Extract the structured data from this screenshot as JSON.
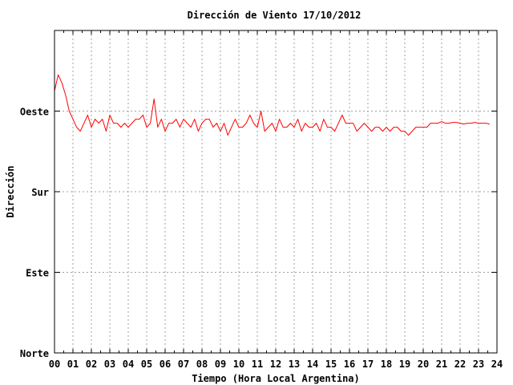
{
  "chart_data": {
    "type": "line",
    "title": "Dirección de Viento 17/10/2012",
    "xlabel": "Tiempo (Hora Local Argentina)",
    "ylabel": "Dirección",
    "xlim": [
      0,
      24
    ],
    "ylim": [
      0,
      4
    ],
    "x_ticks": [
      "00",
      "01",
      "02",
      "03",
      "04",
      "05",
      "06",
      "07",
      "08",
      "09",
      "10",
      "11",
      "12",
      "13",
      "14",
      "15",
      "16",
      "17",
      "18",
      "19",
      "20",
      "21",
      "22",
      "23",
      "24"
    ],
    "y_ticks": [
      {
        "value": 0,
        "label": "Norte"
      },
      {
        "value": 1,
        "label": "Este"
      },
      {
        "value": 2,
        "label": "Sur"
      },
      {
        "value": 3,
        "label": "Oeste"
      }
    ],
    "grid": true,
    "series_color": "#ff0000",
    "series": [
      {
        "x": [
          0.0,
          0.2,
          0.4,
          0.6,
          0.8,
          1.0,
          1.2,
          1.4,
          1.6,
          1.8,
          2.0,
          2.2,
          2.4,
          2.6,
          2.8,
          3.0,
          3.2,
          3.4,
          3.6,
          3.8,
          4.0,
          4.2,
          4.4,
          4.6,
          4.8,
          5.0,
          5.2,
          5.4,
          5.6,
          5.8,
          6.0,
          6.2,
          6.4,
          6.6,
          6.8,
          7.0,
          7.2,
          7.4,
          7.6,
          7.8,
          8.0,
          8.2,
          8.4,
          8.6,
          8.8,
          9.0,
          9.2,
          9.4,
          9.6,
          9.8,
          10.0,
          10.2,
          10.4,
          10.6,
          10.8,
          11.0,
          11.2,
          11.4,
          11.6,
          11.8,
          12.0,
          12.2,
          12.4,
          12.6,
          12.8,
          13.0,
          13.2,
          13.4,
          13.6,
          13.8,
          14.0,
          14.2,
          14.4,
          14.6,
          14.8,
          15.0,
          15.2,
          15.4,
          15.6,
          15.8,
          16.0,
          16.2,
          16.4,
          16.6,
          16.8,
          17.0,
          17.2,
          17.4,
          17.6,
          17.8,
          18.0,
          18.2,
          18.4,
          18.6,
          18.8,
          19.0,
          19.2,
          19.4,
          19.6,
          19.8,
          20.0,
          20.2,
          20.4,
          20.6,
          20.8,
          21.0,
          21.2,
          21.4,
          21.6,
          21.8,
          22.0,
          22.2,
          22.4,
          22.6,
          22.8,
          23.0,
          23.2,
          23.4,
          23.6
        ],
        "y": [
          3.25,
          3.45,
          3.35,
          3.2,
          3.0,
          2.9,
          2.8,
          2.75,
          2.85,
          2.95,
          2.8,
          2.9,
          2.85,
          2.9,
          2.75,
          2.95,
          2.85,
          2.85,
          2.8,
          2.85,
          2.8,
          2.85,
          2.9,
          2.9,
          2.95,
          2.8,
          2.85,
          3.15,
          2.8,
          2.9,
          2.75,
          2.85,
          2.85,
          2.9,
          2.8,
          2.9,
          2.85,
          2.8,
          2.9,
          2.75,
          2.85,
          2.9,
          2.9,
          2.8,
          2.85,
          2.75,
          2.85,
          2.7,
          2.8,
          2.9,
          2.8,
          2.8,
          2.85,
          2.95,
          2.85,
          2.8,
          3.0,
          2.75,
          2.8,
          2.85,
          2.75,
          2.9,
          2.8,
          2.8,
          2.85,
          2.8,
          2.9,
          2.75,
          2.85,
          2.8,
          2.8,
          2.85,
          2.75,
          2.9,
          2.8,
          2.8,
          2.75,
          2.85,
          2.95,
          2.85,
          2.85,
          2.85,
          2.75,
          2.8,
          2.85,
          2.8,
          2.75,
          2.8,
          2.8,
          2.75,
          2.8,
          2.75,
          2.8,
          2.8,
          2.75,
          2.75,
          2.7,
          2.75,
          2.8,
          2.8,
          2.8,
          2.8,
          2.85,
          2.85,
          2.85,
          2.87,
          2.85,
          2.85,
          2.86,
          2.86,
          2.85,
          2.84,
          2.85,
          2.85,
          2.86,
          2.85,
          2.85,
          2.85,
          2.84
        ]
      }
    ]
  }
}
